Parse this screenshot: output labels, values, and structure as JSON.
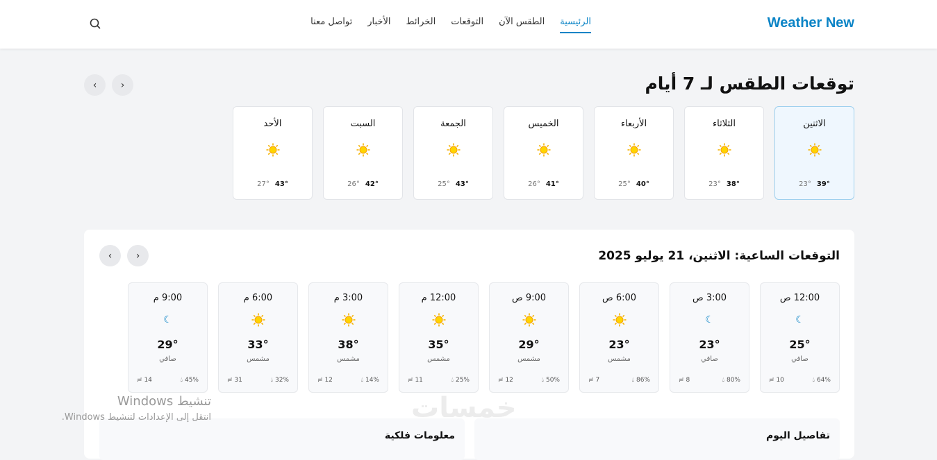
{
  "header": {
    "logo": "Weather New",
    "nav": [
      "الرئيسية",
      "الطقس الآن",
      "التوقعات",
      "الخرائط",
      "الأخبار",
      "تواصل معنا"
    ],
    "active_nav": 0,
    "search_icon": "search-icon"
  },
  "colors": {
    "accent": "#0b84c6",
    "sun": "#fbbf24"
  },
  "daily": {
    "title": "توقعات الطقس لـ 7 أيام",
    "days": [
      {
        "name": "الاثنين",
        "icon": "sun",
        "high": "39°",
        "low": "23°",
        "selected": true
      },
      {
        "name": "الثلاثاء",
        "icon": "sun",
        "high": "38°",
        "low": "23°"
      },
      {
        "name": "الأربعاء",
        "icon": "sun",
        "high": "40°",
        "low": "25°"
      },
      {
        "name": "الخميس",
        "icon": "sun",
        "high": "41°",
        "low": "26°"
      },
      {
        "name": "الجمعة",
        "icon": "sun",
        "high": "43°",
        "low": "25°"
      },
      {
        "name": "السبت",
        "icon": "sun",
        "high": "42°",
        "low": "26°"
      },
      {
        "name": "الأحد",
        "icon": "sun",
        "high": "43°",
        "low": "27°"
      }
    ]
  },
  "hourly": {
    "title": "التوقعات الساعية: الاثنين، 21 يوليو 2025",
    "hours": [
      {
        "time": "12:00 ص",
        "icon": "moon",
        "temp": "25°",
        "cond": "صافي",
        "humidity": "64%",
        "wind": "10"
      },
      {
        "time": "3:00 ص",
        "icon": "moon",
        "temp": "23°",
        "cond": "صافي",
        "humidity": "80%",
        "wind": "8"
      },
      {
        "time": "6:00 ص",
        "icon": "sun",
        "temp": "23°",
        "cond": "مشمس",
        "humidity": "86%",
        "wind": "7"
      },
      {
        "time": "9:00 ص",
        "icon": "sun",
        "temp": "29°",
        "cond": "مشمس",
        "humidity": "50%",
        "wind": "12"
      },
      {
        "time": "12:00 م",
        "icon": "sun",
        "temp": "35°",
        "cond": "مشمس",
        "humidity": "25%",
        "wind": "11"
      },
      {
        "time": "3:00 م",
        "icon": "sun",
        "temp": "38°",
        "cond": "مشمس",
        "humidity": "14%",
        "wind": "12"
      },
      {
        "time": "6:00 م",
        "icon": "sun",
        "temp": "33°",
        "cond": "مشمس",
        "humidity": "32%",
        "wind": "31"
      },
      {
        "time": "9:00 م",
        "icon": "moon",
        "temp": "29°",
        "cond": "صافي",
        "humidity": "45%",
        "wind": "14"
      }
    ]
  },
  "sections": {
    "today_details": "تفاصيل اليوم",
    "astronomy": "معلومات فلكية"
  },
  "overlay": {
    "windows_title": "تنشيط Windows",
    "windows_sub": "انتقل إلى الإعدادات لتنشيط Windows.",
    "watermark": "خمسات"
  }
}
